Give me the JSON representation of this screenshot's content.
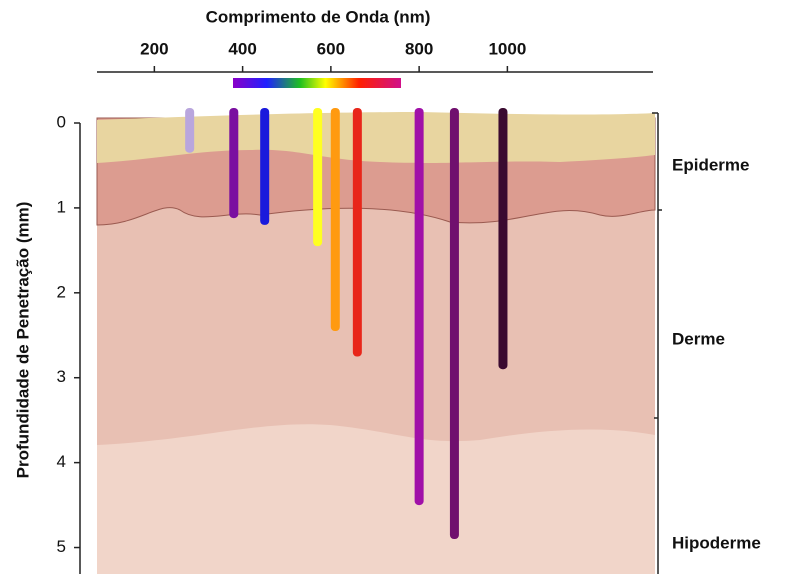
{
  "chart_data": {
    "type": "bar",
    "title": "Comprimento de Onda (nm)",
    "y_label": "Profundidade de Penetração (mm)",
    "x": [
      280,
      380,
      450,
      570,
      610,
      660,
      800,
      880,
      990
    ],
    "values": [
      0.35,
      1.12,
      1.2,
      1.45,
      2.45,
      2.75,
      4.5,
      4.9,
      2.9
    ],
    "colors": [
      "#b9a6dd",
      "#7a0fa0",
      "#1a1adc",
      "#ffff20",
      "#ff9a10",
      "#e8261a",
      "#a010a8",
      "#70106e",
      "#3a0a30"
    ],
    "xlim": [
      70,
      1330
    ],
    "xticks": [
      200,
      400,
      600,
      800,
      1000
    ],
    "ylim": [
      0,
      5.3
    ],
    "yticks": [
      0,
      1,
      2,
      3,
      4,
      5
    ],
    "layers": [
      "Epiderme",
      "Derme",
      "Hipoderme"
    ]
  }
}
